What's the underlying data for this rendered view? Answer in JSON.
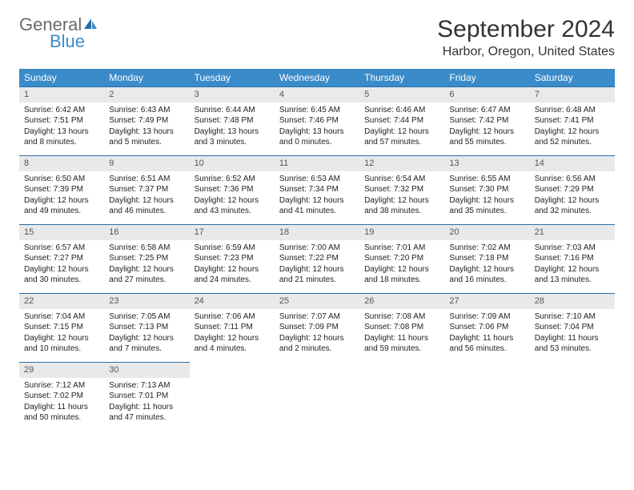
{
  "logo": {
    "general": "General",
    "blue": "Blue"
  },
  "title": "September 2024",
  "location": "Harbor, Oregon, United States",
  "weekdays": [
    "Sunday",
    "Monday",
    "Tuesday",
    "Wednesday",
    "Thursday",
    "Friday",
    "Saturday"
  ],
  "colors": {
    "header_bg": "#3a8bc9",
    "daynum_bg": "#e9e9e9",
    "row_border": "#2b6fa8",
    "logo_gray": "#6b6b6b",
    "logo_blue": "#3a8bc9"
  },
  "days": [
    {
      "n": "1",
      "sunrise": "Sunrise: 6:42 AM",
      "sunset": "Sunset: 7:51 PM",
      "daylight": "Daylight: 13 hours and 8 minutes."
    },
    {
      "n": "2",
      "sunrise": "Sunrise: 6:43 AM",
      "sunset": "Sunset: 7:49 PM",
      "daylight": "Daylight: 13 hours and 5 minutes."
    },
    {
      "n": "3",
      "sunrise": "Sunrise: 6:44 AM",
      "sunset": "Sunset: 7:48 PM",
      "daylight": "Daylight: 13 hours and 3 minutes."
    },
    {
      "n": "4",
      "sunrise": "Sunrise: 6:45 AM",
      "sunset": "Sunset: 7:46 PM",
      "daylight": "Daylight: 13 hours and 0 minutes."
    },
    {
      "n": "5",
      "sunrise": "Sunrise: 6:46 AM",
      "sunset": "Sunset: 7:44 PM",
      "daylight": "Daylight: 12 hours and 57 minutes."
    },
    {
      "n": "6",
      "sunrise": "Sunrise: 6:47 AM",
      "sunset": "Sunset: 7:42 PM",
      "daylight": "Daylight: 12 hours and 55 minutes."
    },
    {
      "n": "7",
      "sunrise": "Sunrise: 6:48 AM",
      "sunset": "Sunset: 7:41 PM",
      "daylight": "Daylight: 12 hours and 52 minutes."
    },
    {
      "n": "8",
      "sunrise": "Sunrise: 6:50 AM",
      "sunset": "Sunset: 7:39 PM",
      "daylight": "Daylight: 12 hours and 49 minutes."
    },
    {
      "n": "9",
      "sunrise": "Sunrise: 6:51 AM",
      "sunset": "Sunset: 7:37 PM",
      "daylight": "Daylight: 12 hours and 46 minutes."
    },
    {
      "n": "10",
      "sunrise": "Sunrise: 6:52 AM",
      "sunset": "Sunset: 7:36 PM",
      "daylight": "Daylight: 12 hours and 43 minutes."
    },
    {
      "n": "11",
      "sunrise": "Sunrise: 6:53 AM",
      "sunset": "Sunset: 7:34 PM",
      "daylight": "Daylight: 12 hours and 41 minutes."
    },
    {
      "n": "12",
      "sunrise": "Sunrise: 6:54 AM",
      "sunset": "Sunset: 7:32 PM",
      "daylight": "Daylight: 12 hours and 38 minutes."
    },
    {
      "n": "13",
      "sunrise": "Sunrise: 6:55 AM",
      "sunset": "Sunset: 7:30 PM",
      "daylight": "Daylight: 12 hours and 35 minutes."
    },
    {
      "n": "14",
      "sunrise": "Sunrise: 6:56 AM",
      "sunset": "Sunset: 7:29 PM",
      "daylight": "Daylight: 12 hours and 32 minutes."
    },
    {
      "n": "15",
      "sunrise": "Sunrise: 6:57 AM",
      "sunset": "Sunset: 7:27 PM",
      "daylight": "Daylight: 12 hours and 30 minutes."
    },
    {
      "n": "16",
      "sunrise": "Sunrise: 6:58 AM",
      "sunset": "Sunset: 7:25 PM",
      "daylight": "Daylight: 12 hours and 27 minutes."
    },
    {
      "n": "17",
      "sunrise": "Sunrise: 6:59 AM",
      "sunset": "Sunset: 7:23 PM",
      "daylight": "Daylight: 12 hours and 24 minutes."
    },
    {
      "n": "18",
      "sunrise": "Sunrise: 7:00 AM",
      "sunset": "Sunset: 7:22 PM",
      "daylight": "Daylight: 12 hours and 21 minutes."
    },
    {
      "n": "19",
      "sunrise": "Sunrise: 7:01 AM",
      "sunset": "Sunset: 7:20 PM",
      "daylight": "Daylight: 12 hours and 18 minutes."
    },
    {
      "n": "20",
      "sunrise": "Sunrise: 7:02 AM",
      "sunset": "Sunset: 7:18 PM",
      "daylight": "Daylight: 12 hours and 16 minutes."
    },
    {
      "n": "21",
      "sunrise": "Sunrise: 7:03 AM",
      "sunset": "Sunset: 7:16 PM",
      "daylight": "Daylight: 12 hours and 13 minutes."
    },
    {
      "n": "22",
      "sunrise": "Sunrise: 7:04 AM",
      "sunset": "Sunset: 7:15 PM",
      "daylight": "Daylight: 12 hours and 10 minutes."
    },
    {
      "n": "23",
      "sunrise": "Sunrise: 7:05 AM",
      "sunset": "Sunset: 7:13 PM",
      "daylight": "Daylight: 12 hours and 7 minutes."
    },
    {
      "n": "24",
      "sunrise": "Sunrise: 7:06 AM",
      "sunset": "Sunset: 7:11 PM",
      "daylight": "Daylight: 12 hours and 4 minutes."
    },
    {
      "n": "25",
      "sunrise": "Sunrise: 7:07 AM",
      "sunset": "Sunset: 7:09 PM",
      "daylight": "Daylight: 12 hours and 2 minutes."
    },
    {
      "n": "26",
      "sunrise": "Sunrise: 7:08 AM",
      "sunset": "Sunset: 7:08 PM",
      "daylight": "Daylight: 11 hours and 59 minutes."
    },
    {
      "n": "27",
      "sunrise": "Sunrise: 7:09 AM",
      "sunset": "Sunset: 7:06 PM",
      "daylight": "Daylight: 11 hours and 56 minutes."
    },
    {
      "n": "28",
      "sunrise": "Sunrise: 7:10 AM",
      "sunset": "Sunset: 7:04 PM",
      "daylight": "Daylight: 11 hours and 53 minutes."
    },
    {
      "n": "29",
      "sunrise": "Sunrise: 7:12 AM",
      "sunset": "Sunset: 7:02 PM",
      "daylight": "Daylight: 11 hours and 50 minutes."
    },
    {
      "n": "30",
      "sunrise": "Sunrise: 7:13 AM",
      "sunset": "Sunset: 7:01 PM",
      "daylight": "Daylight: 11 hours and 47 minutes."
    }
  ]
}
